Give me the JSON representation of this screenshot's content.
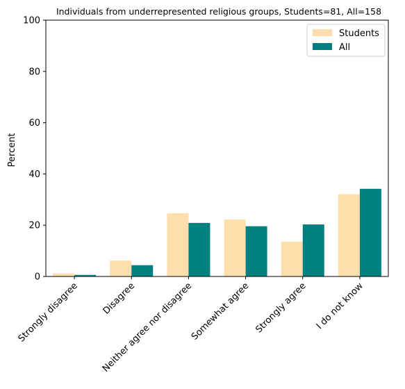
{
  "chart_data": {
    "type": "bar",
    "title": "Individuals from underrepresented religious groups, Students=81, All=158",
    "xlabel": "",
    "ylabel": "Percent",
    "ylim": [
      0,
      100
    ],
    "yticks": [
      0,
      20,
      40,
      60,
      80,
      100
    ],
    "grid": false,
    "legend_position": "top-right",
    "categories": [
      "Strongly disagree",
      "Disagree",
      "Neither agree nor disagree",
      "Somewhat agree",
      "Strongly agree",
      "I do not know"
    ],
    "series": [
      {
        "name": "Students",
        "color": "#ffdead",
        "values": [
          1.2,
          6.2,
          24.7,
          22.2,
          13.6,
          32.1
        ]
      },
      {
        "name": "All",
        "color": "#008080",
        "values": [
          0.6,
          4.4,
          20.9,
          19.6,
          20.3,
          34.2
        ]
      }
    ]
  }
}
